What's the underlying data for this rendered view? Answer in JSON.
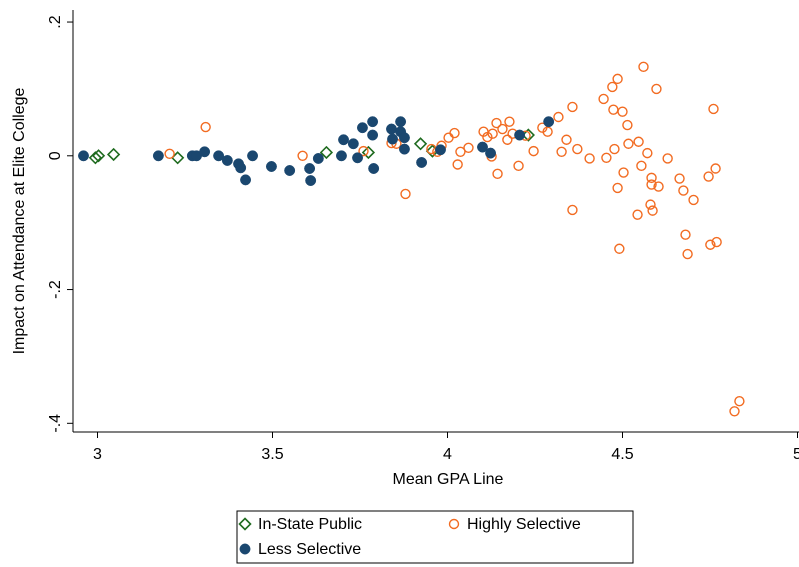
{
  "chart_data": {
    "type": "scatter",
    "xlabel": "Mean GPA Line",
    "ylabel": "Impact on Attendance at Elite College",
    "xlim": [
      2.93,
      5.0
    ],
    "ylim": [
      -0.413,
      0.218
    ],
    "xticks": [
      3,
      3.5,
      4,
      4.5,
      5
    ],
    "yticks": [
      {
        "value": 0.2,
        "label": ".2"
      },
      {
        "value": 0,
        "label": "0"
      },
      {
        "value": -0.2,
        "label": "-.2"
      },
      {
        "value": -0.4,
        "label": "-.4"
      }
    ],
    "legend": "bottom",
    "series": [
      {
        "name": "In-State Public",
        "color": "#1f6b1f",
        "marker": "diamond",
        "x": [
          2.994,
          3.003,
          3.046,
          3.229,
          3.654,
          3.774,
          3.923,
          3.957,
          4.231
        ],
        "y": [
          -0.003,
          0,
          0.002,
          -0.003,
          0.005,
          0.005,
          0.018,
          0.007,
          0.031
        ]
      },
      {
        "name": "Highly Selective",
        "color": "#f26b21",
        "marker": "circle-open",
        "x": [
          3.206,
          3.309,
          3.586,
          3.76,
          3.84,
          3.854,
          3.88,
          3.954,
          3.971,
          3.983,
          4.003,
          4.02,
          4.029,
          4.037,
          4.06,
          4.103,
          4.114,
          4.126,
          4.129,
          4.14,
          4.143,
          4.157,
          4.171,
          4.177,
          4.186,
          4.203,
          4.223,
          4.246,
          4.271,
          4.286,
          4.317,
          4.326,
          4.34,
          4.357,
          4.357,
          4.371,
          4.406,
          4.446,
          4.454,
          4.471,
          4.474,
          4.477,
          4.486,
          4.486,
          4.491,
          4.5,
          4.503,
          4.514,
          4.517,
          4.543,
          4.546,
          4.554,
          4.56,
          4.571,
          4.58,
          4.583,
          4.583,
          4.586,
          4.597,
          4.603,
          4.629,
          4.663,
          4.674,
          4.68,
          4.686,
          4.703,
          4.746,
          4.751,
          4.76,
          4.766,
          4.769,
          4.82,
          4.834
        ],
        "y": [
          0.003,
          0.043,
          0,
          0.007,
          0.019,
          0.018,
          -0.057,
          0.01,
          0.006,
          0.015,
          0.027,
          0.034,
          -0.013,
          0.006,
          0.012,
          0.036,
          0.028,
          -0.001,
          0.033,
          0.049,
          -0.027,
          0.04,
          0.024,
          0.051,
          0.033,
          -0.015,
          0.03,
          0.007,
          0.042,
          0.036,
          0.058,
          0.006,
          0.024,
          0.073,
          -0.081,
          0.01,
          -0.004,
          0.085,
          -0.003,
          0.103,
          0.069,
          0.01,
          -0.048,
          0.115,
          -0.139,
          0.066,
          -0.025,
          0.046,
          0.018,
          -0.088,
          0.021,
          -0.015,
          0.133,
          0.004,
          -0.073,
          -0.043,
          -0.033,
          -0.082,
          0.1,
          -0.046,
          -0.004,
          -0.034,
          -0.052,
          -0.118,
          -0.147,
          -0.066,
          -0.031,
          -0.133,
          0.07,
          -0.019,
          -0.129,
          -0.382,
          -0.367
        ]
      },
      {
        "name": "Less Selective",
        "color": "#1a476f",
        "marker": "circle",
        "x": [
          2.96,
          3.174,
          3.271,
          3.283,
          3.306,
          3.346,
          3.371,
          3.403,
          3.409,
          3.423,
          3.443,
          3.497,
          3.549,
          3.606,
          3.609,
          3.631,
          3.697,
          3.703,
          3.731,
          3.743,
          3.757,
          3.786,
          3.786,
          3.789,
          3.84,
          3.843,
          3.866,
          3.866,
          3.877,
          3.877,
          3.926,
          3.98,
          4.1,
          4.123,
          4.206,
          4.289
        ],
        "y": [
          0,
          0,
          0,
          0,
          0.006,
          0,
          -0.007,
          -0.012,
          -0.018,
          -0.036,
          0,
          -0.016,
          -0.022,
          -0.019,
          -0.037,
          -0.004,
          0,
          0.024,
          0.018,
          -0.003,
          0.042,
          0.051,
          0.031,
          -0.019,
          0.04,
          0.025,
          0.051,
          0.036,
          0.027,
          0.01,
          -0.01,
          0.009,
          0.013,
          0.004,
          0.031,
          0.051
        ]
      }
    ]
  }
}
